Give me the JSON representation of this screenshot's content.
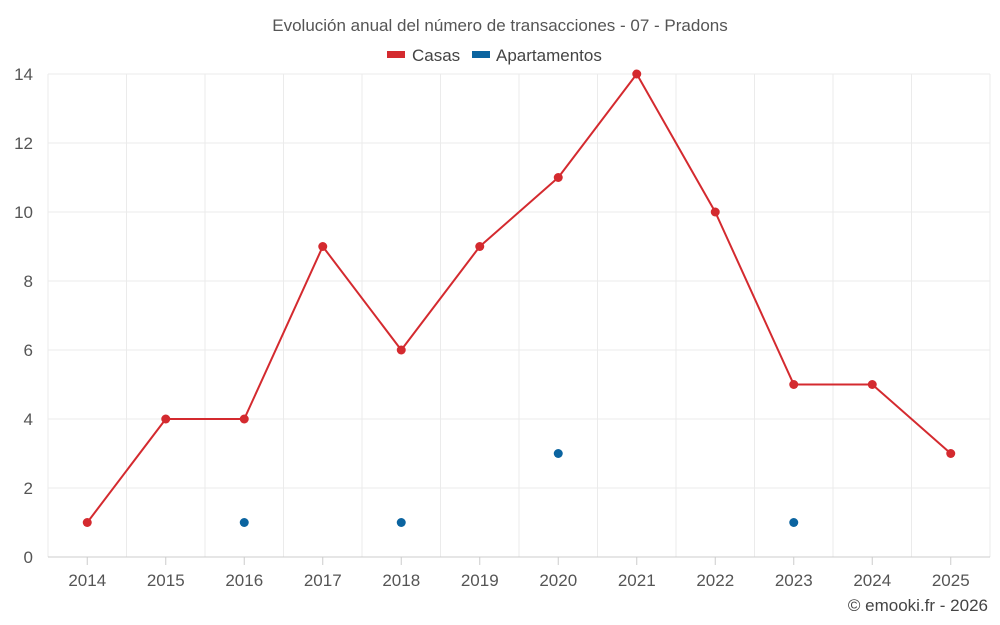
{
  "chart_data": {
    "type": "line",
    "title": "Evolución anual del número de transacciones - 07 - Pradons",
    "xlabel": "",
    "ylabel": "",
    "categories": [
      "2014",
      "2015",
      "2016",
      "2017",
      "2018",
      "2019",
      "2020",
      "2021",
      "2022",
      "2023",
      "2024",
      "2025"
    ],
    "ylim": [
      0,
      14
    ],
    "yticks": [
      0,
      2,
      4,
      6,
      8,
      10,
      12,
      14
    ],
    "grid": true,
    "legend_position": "top-center",
    "series": [
      {
        "name": "Casas",
        "color": "#d42a2f",
        "style": "line-with-markers",
        "values": [
          1,
          4,
          4,
          9,
          6,
          9,
          11,
          14,
          10,
          5,
          5,
          3
        ]
      },
      {
        "name": "Apartamentos",
        "color": "#0b64a0",
        "style": "markers",
        "values": [
          null,
          null,
          1,
          null,
          1,
          null,
          3,
          null,
          null,
          1,
          null,
          null
        ]
      }
    ],
    "credit": "© emooki.fr - 2026"
  }
}
